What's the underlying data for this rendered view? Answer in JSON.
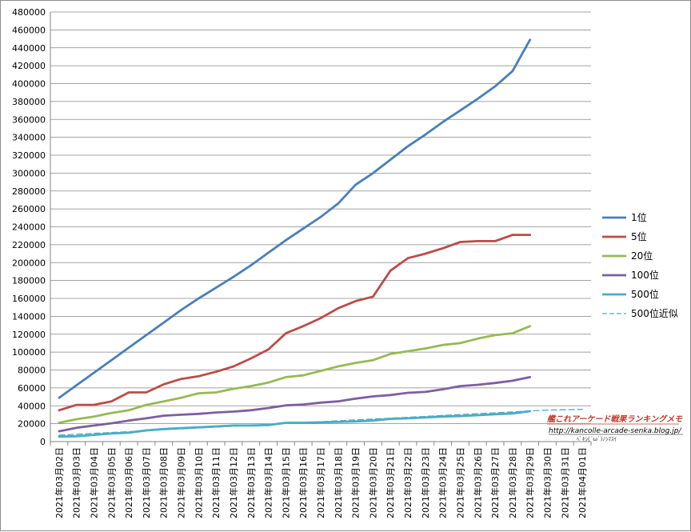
{
  "chart_data": {
    "type": "line",
    "title": "",
    "xlabel": "",
    "ylabel": "",
    "ylim": [
      0,
      480000
    ],
    "y_ticks": [
      0,
      20000,
      40000,
      60000,
      80000,
      100000,
      120000,
      140000,
      160000,
      180000,
      200000,
      220000,
      240000,
      260000,
      280000,
      300000,
      320000,
      340000,
      360000,
      380000,
      400000,
      420000,
      440000,
      460000,
      480000
    ],
    "grid": true,
    "legend_position": "right",
    "categories": [
      "2021年03月02日",
      "2021年03月03日",
      "2021年03月04日",
      "2021年03月05日",
      "2021年03月06日",
      "2021年03月07日",
      "2021年03月08日",
      "2021年03月09日",
      "2021年03月10日",
      "2021年03月11日",
      "2021年03月12日",
      "2021年03月13日",
      "2021年03月14日",
      "2021年03月15日",
      "2021年03月16日",
      "2021年03月17日",
      "2021年03月18日",
      "2021年03月19日",
      "2021年03月20日",
      "2021年03月21日",
      "2021年03月22日",
      "2021年03月23日",
      "2021年03月24日",
      "2021年03月25日",
      "2021年03月26日",
      "2021年03月27日",
      "2021年03月28日",
      "2021年03月29日",
      "2021年03月30日",
      "2021年03月31日",
      "2021年04月01日"
    ],
    "series": [
      {
        "name": "1位",
        "color": "#4a7ebb",
        "dashed": false,
        "values": [
          49000,
          63000,
          77000,
          91000,
          105000,
          119000,
          133000,
          147000,
          160000,
          172000,
          184000,
          197000,
          211000,
          225000,
          238000,
          251000,
          266000,
          287000,
          300000,
          315000,
          330000,
          343000,
          357000,
          370000,
          383000,
          397000,
          414000,
          449000,
          null,
          null,
          null
        ]
      },
      {
        "name": "5位",
        "color": "#be4b48",
        "dashed": false,
        "values": [
          35000,
          41000,
          41000,
          45000,
          55000,
          55000,
          64000,
          70000,
          73000,
          78000,
          84000,
          93000,
          103000,
          121000,
          129000,
          138000,
          149000,
          157000,
          162000,
          191000,
          205000,
          210000,
          216000,
          223000,
          224000,
          224000,
          231000,
          231000,
          null,
          null,
          null
        ]
      },
      {
        "name": "20位",
        "color": "#98b954",
        "dashed": false,
        "values": [
          21000,
          25000,
          28000,
          32000,
          35000,
          41000,
          45000,
          49000,
          54000,
          55000,
          59000,
          62000,
          66000,
          72000,
          74000,
          79000,
          84000,
          88000,
          91000,
          98000,
          101000,
          104000,
          108000,
          110000,
          115000,
          119000,
          121000,
          129000,
          null,
          null,
          null
        ]
      },
      {
        "name": "100位",
        "color": "#7d5fa0",
        "dashed": false,
        "values": [
          11500,
          15500,
          18000,
          20500,
          23500,
          26000,
          29000,
          30000,
          31000,
          32500,
          33500,
          35000,
          37500,
          40500,
          41500,
          43500,
          45000,
          48000,
          50500,
          52000,
          54500,
          55500,
          58500,
          62000,
          63500,
          65500,
          68000,
          72000,
          null,
          null,
          null
        ]
      },
      {
        "name": "500位",
        "color": "#4bacc6",
        "dashed": false,
        "values": [
          5500,
          6000,
          7500,
          9000,
          10000,
          12500,
          14000,
          15000,
          16000,
          17000,
          18000,
          18000,
          18500,
          21000,
          21000,
          21500,
          22000,
          22500,
          23500,
          25500,
          26000,
          27000,
          28000,
          28500,
          29500,
          30500,
          31500,
          34000,
          null,
          null,
          null
        ]
      },
      {
        "name": "500位近似",
        "color": "#4bacc6",
        "dashed": true,
        "values": [
          7200,
          8200,
          9200,
          10200,
          11200,
          12200,
          13200,
          14200,
          15200,
          16200,
          17200,
          18200,
          19200,
          20200,
          21200,
          22200,
          23200,
          24200,
          25200,
          26200,
          27200,
          28200,
          29200,
          30200,
          31200,
          32200,
          33200,
          34200,
          35200,
          35600,
          36000
        ]
      }
    ]
  },
  "watermark": {
    "title": "艦これアーケード戦果ランキングメモ",
    "url": "http://kancolle-arcade-senka.blog.jp/",
    "note": "ﾍﾞｷｼ(´ω`)ﾉｼﾏｽｲ"
  }
}
